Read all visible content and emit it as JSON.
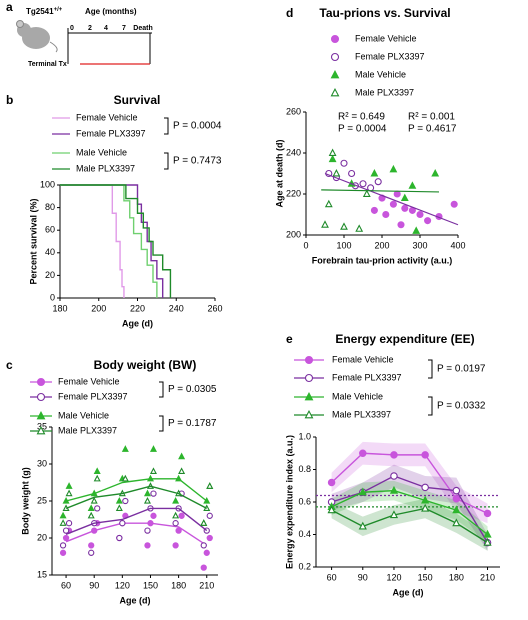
{
  "panel_letters": [
    "a",
    "b",
    "c",
    "d",
    "e"
  ],
  "schematic": {
    "animal": "Tg2541",
    "genotype": "+/+",
    "axis_title": "Age (months)",
    "ticks": [
      "0",
      "2",
      "4",
      "7",
      "Death"
    ],
    "treatment": "Terminal Tx"
  },
  "chart_data": [
    {
      "type": "survival",
      "title": "Survival",
      "xlabel": "Age (d)",
      "ylabel": "Percent survival (%)",
      "xlim": [
        180,
        260
      ],
      "xticks": [
        180,
        200,
        220,
        240,
        260
      ],
      "ylim": [
        0,
        100
      ],
      "yticks": [
        0,
        20,
        40,
        60,
        80,
        100
      ],
      "series": [
        {
          "name": "Female Vehicle",
          "color": "#e09ae8",
          "x": [
            180,
            207,
            207,
            209,
            209,
            211,
            211,
            212,
            212,
            213,
            213
          ],
          "values": [
            100,
            100,
            75,
            75,
            50,
            50,
            25,
            25,
            10,
            10,
            0
          ]
        },
        {
          "name": "Female PLX3397",
          "color": "#7a2fa0",
          "x": [
            180,
            220,
            220,
            222,
            222,
            225,
            225,
            227,
            227,
            230,
            230,
            233,
            233
          ],
          "values": [
            100,
            100,
            83,
            83,
            67,
            67,
            50,
            50,
            33,
            33,
            17,
            17,
            0
          ]
        },
        {
          "name": "Male Vehicle",
          "color": "#6fd06f",
          "x": [
            180,
            213,
            213,
            216,
            216,
            218,
            218,
            222,
            222,
            225,
            225,
            228,
            228,
            230,
            230
          ],
          "values": [
            100,
            100,
            86,
            86,
            71,
            71,
            57,
            57,
            43,
            43,
            29,
            29,
            14,
            14,
            0
          ]
        },
        {
          "name": "Male PLX3397",
          "color": "#1f8a2a",
          "x": [
            180,
            214,
            214,
            220,
            220,
            223,
            223,
            226,
            226,
            228,
            228,
            233,
            233,
            237,
            237
          ],
          "values": [
            100,
            100,
            88,
            88,
            75,
            75,
            62,
            62,
            50,
            50,
            38,
            38,
            25,
            25,
            0
          ]
        }
      ],
      "annotations": [
        {
          "text": "P = 0.0004",
          "color": "#000000"
        },
        {
          "text": "P = 0.7473",
          "color": "#000000"
        }
      ]
    },
    {
      "type": "scatter-line",
      "title": "Body weight (BW)",
      "xlabel": "Age (d)",
      "ylabel": "Body weight (g)",
      "xlim": [
        45,
        222
      ],
      "xticks": [
        60,
        90,
        120,
        150,
        180,
        210
      ],
      "ylim": [
        15,
        35
      ],
      "yticks": [
        15,
        20,
        25,
        30,
        35
      ],
      "x": [
        60,
        90,
        120,
        150,
        180,
        210
      ],
      "series": [
        {
          "name": "Female Vehicle",
          "color": "#c855dc",
          "marker": "circle",
          "filled": true,
          "values": [
            19.5,
            21,
            22,
            22,
            21.5,
            19
          ],
          "points": [
            [
              18,
              20,
              21
            ],
            [
              19,
              21,
              22
            ],
            [
              20,
              22,
              23
            ],
            [
              19,
              22,
              23
            ],
            [
              19,
              21,
              23
            ],
            [
              16,
              18,
              20
            ]
          ]
        },
        {
          "name": "Female PLX3397",
          "color": "#7a2fa0",
          "marker": "circle",
          "filled": false,
          "values": [
            20.5,
            22,
            22.5,
            24,
            24,
            21
          ],
          "points": [
            [
              19,
              21,
              22
            ],
            [
              18,
              22,
              24
            ],
            [
              20,
              22,
              25
            ],
            [
              21,
              24,
              26
            ],
            [
              22,
              24,
              26
            ],
            [
              19,
              21,
              23
            ]
          ]
        },
        {
          "name": "Male Vehicle",
          "color": "#2db52d",
          "marker": "triangle",
          "filled": true,
          "values": [
            25,
            26,
            27.5,
            28,
            28,
            25
          ],
          "points": [
            [
              23,
              25,
              27
            ],
            [
              24,
              26,
              29
            ],
            [
              25,
              28,
              32
            ],
            [
              26,
              28,
              32
            ],
            [
              25,
              28,
              31
            ],
            [
              22,
              25,
              27
            ]
          ]
        },
        {
          "name": "Male PLX3397",
          "color": "#1f8a2a",
          "marker": "triangle",
          "filled": false,
          "values": [
            24,
            25.5,
            26,
            27,
            26,
            24
          ],
          "points": [
            [
              22,
              24,
              26
            ],
            [
              23,
              25,
              28
            ],
            [
              24,
              26,
              28
            ],
            [
              25,
              27,
              29
            ],
            [
              23,
              26,
              29
            ],
            [
              22,
              24,
              27
            ]
          ]
        }
      ],
      "annotations": [
        {
          "text": "P = 0.0305",
          "color": "#000000"
        },
        {
          "text": "P = 0.1787",
          "color": "#000000"
        }
      ]
    },
    {
      "type": "scatter",
      "title": "Tau-prions vs. Survival",
      "xlabel": "Forebrain tau-prion activity (a.u.)",
      "ylabel": "Age at death (d)",
      "xlim": [
        0,
        400
      ],
      "xticks": [
        0,
        100,
        200,
        300,
        400
      ],
      "ylim": [
        200,
        260
      ],
      "yticks": [
        200,
        220,
        240,
        260
      ],
      "series": [
        {
          "name": "Female Vehicle",
          "color": "#c855dc",
          "marker": "circle",
          "filled": true,
          "x": [
            180,
            200,
            210,
            230,
            240,
            250,
            260,
            280,
            300,
            320,
            350,
            390
          ],
          "values": [
            212,
            218,
            210,
            215,
            220,
            205,
            213,
            212,
            210,
            207,
            209,
            215
          ]
        },
        {
          "name": "Female PLX3397",
          "color": "#7a2fa0",
          "marker": "circle",
          "filled": false,
          "x": [
            60,
            80,
            100,
            120,
            130,
            150,
            170,
            190
          ],
          "values": [
            230,
            228,
            235,
            230,
            224,
            225,
            223,
            226
          ]
        },
        {
          "name": "Male Vehicle",
          "color": "#2db52d",
          "marker": "triangle",
          "filled": true,
          "x": [
            70,
            120,
            180,
            230,
            260,
            280,
            290,
            340
          ],
          "values": [
            237,
            225,
            230,
            232,
            218,
            224,
            202,
            230
          ]
        },
        {
          "name": "Male PLX3397",
          "color": "#1f8a2a",
          "marker": "triangle",
          "filled": false,
          "x": [
            50,
            60,
            70,
            80,
            100,
            140,
            160
          ],
          "values": [
            205,
            215,
            240,
            230,
            204,
            203,
            220
          ]
        }
      ],
      "fits": [
        {
          "color": "#7a2fa0",
          "x": [
            50,
            400
          ],
          "values": [
            230,
            205
          ]
        },
        {
          "color": "#1f8a2a",
          "x": [
            40,
            350
          ],
          "values": [
            222,
            221
          ]
        }
      ],
      "annotations": [
        {
          "text": "R² = 0.649",
          "color": "#7a2fa0"
        },
        {
          "text": "P = 0.0004",
          "color": "#7a2fa0"
        },
        {
          "text": "R² = 0.001",
          "color": "#1f8a2a"
        },
        {
          "text": "P = 0.4617",
          "color": "#1f8a2a"
        }
      ]
    },
    {
      "type": "line",
      "title": "Energy expenditure (EE)",
      "xlabel": "Age (d)",
      "ylabel": "Energy expenditure index (a.u.)",
      "xlim": [
        45,
        222
      ],
      "xticks": [
        60,
        90,
        120,
        150,
        180,
        210
      ],
      "ylim": [
        0.2,
        1.0
      ],
      "yticks": [
        0.2,
        0.4,
        0.6,
        0.8,
        {
          "value": 1.0,
          "label": "1.0"
        }
      ],
      "x": [
        60,
        90,
        120,
        150,
        180,
        210
      ],
      "series": [
        {
          "name": "Female Vehicle",
          "color": "#c855dc",
          "marker": "circle",
          "filled": true,
          "values": [
            0.72,
            0.9,
            0.89,
            0.89,
            0.62,
            0.53
          ],
          "errors": [
            0.06,
            0.07,
            0.07,
            0.07,
            0.08,
            0.06
          ]
        },
        {
          "name": "Female PLX3397",
          "color": "#7a2fa0",
          "marker": "circle",
          "filled": false,
          "values": [
            0.6,
            0.66,
            0.76,
            0.69,
            0.67,
            0.35
          ],
          "errors": [
            0.05,
            0.06,
            0.07,
            0.07,
            0.08,
            0.05
          ]
        },
        {
          "name": "Male Vehicle",
          "color": "#2db52d",
          "marker": "triangle",
          "filled": true,
          "values": [
            0.57,
            0.66,
            0.67,
            0.61,
            0.55,
            0.4
          ],
          "errors": [
            0.05,
            0.06,
            0.06,
            0.06,
            0.06,
            0.05
          ]
        },
        {
          "name": "Male PLX3397",
          "color": "#1f8a2a",
          "marker": "triangle",
          "filled": false,
          "values": [
            0.55,
            0.45,
            0.52,
            0.56,
            0.47,
            0.35
          ],
          "errors": [
            0.05,
            0.06,
            0.06,
            0.06,
            0.06,
            0.05
          ]
        }
      ],
      "hlines": [
        {
          "value": 0.64,
          "color": "#7a2fa0"
        },
        {
          "value": 0.57,
          "color": "#1f8a2a"
        }
      ],
      "annotations": [
        {
          "text": "P = 0.0197",
          "color": "#000000"
        },
        {
          "text": "P = 0.0332",
          "color": "#000000"
        }
      ]
    }
  ]
}
